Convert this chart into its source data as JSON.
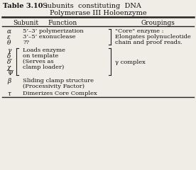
{
  "bg_color": "#f0ede6",
  "border_color": "#222222",
  "title_bold": "Table 3.10 :",
  "title_normal": "  Subunits  constituting  DNA\n           Polymerase III Holoenzyme",
  "col_headers": [
    "Subunit",
    "Function",
    "Groupings"
  ],
  "fig_width": 2.76,
  "fig_height": 2.4,
  "dpi": 100
}
